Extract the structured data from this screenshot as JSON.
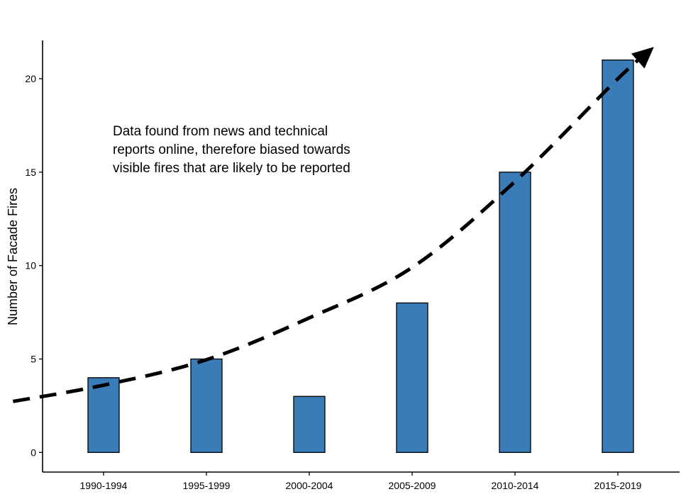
{
  "chart_data": {
    "type": "bar",
    "title": "",
    "xlabel": "",
    "ylabel": "Number of Facade Fires",
    "categories": [
      "1990-1994",
      "1995-1999",
      "2000-2004",
      "2005-2009",
      "2010-2014",
      "2015-2019"
    ],
    "values": [
      4,
      5,
      3,
      8,
      15,
      21
    ],
    "ylim": [
      -1.05,
      22.05
    ],
    "yticks": [
      0,
      5,
      10,
      15,
      20
    ],
    "grid": false,
    "bar_color": "#3a7cb8",
    "bar_outline": "#000000",
    "trend_arrow": {
      "style": "dashed",
      "color": "#000000",
      "x": [
        0.12,
        1,
        2,
        3,
        4,
        5,
        6,
        6.35
      ],
      "y": [
        2.73,
        3.6,
        4.96,
        7.2,
        9.9,
        14.5,
        20.0,
        21.7
      ]
    },
    "annotation": {
      "lines": [
        "Data found from news and technical",
        "reports online, therefore biased towards",
        "visible fires that are likely to be reported"
      ]
    }
  }
}
